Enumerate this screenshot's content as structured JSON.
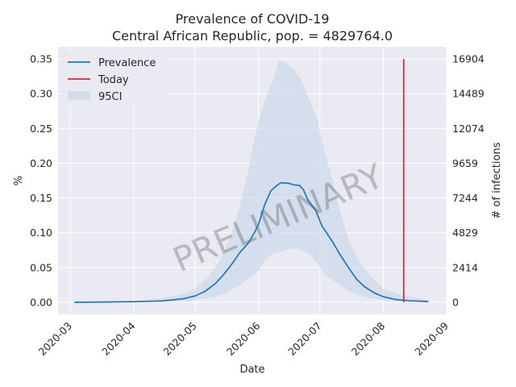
{
  "chart_data": {
    "type": "line",
    "title": "Prevalence of COVID-19",
    "subtitle": "Central African Republic, pop. = 4829764.0",
    "xlabel": "Date",
    "ylabel": "%",
    "y2label": "# of infections",
    "x_ticks": [
      "2020-03",
      "2020-04",
      "2020-05",
      "2020-06",
      "2020-07",
      "2020-08",
      "2020-09"
    ],
    "y_ticks": [
      "0.00",
      "0.05",
      "0.10",
      "0.15",
      "0.20",
      "0.25",
      "0.30",
      "0.35"
    ],
    "y2_ticks": [
      "0",
      "2414",
      "4829",
      "7244",
      "9659",
      "12074",
      "14489",
      "16904"
    ],
    "xlim": [
      "2020-02-24",
      "2020-09-01"
    ],
    "ylim": [
      -0.0175,
      0.3675
    ],
    "grid": true,
    "legend_position": "top-left",
    "watermark": "PRELIMINARY",
    "today": "2020-08-11",
    "today_range": [
      0.0,
      0.35
    ],
    "colors": {
      "prevalence": "#1f77b4",
      "today": "#d62728",
      "ci": "#c6d6ea",
      "background": "#eaeaf2"
    },
    "series": [
      {
        "name": "Prevalence",
        "role": "line",
        "points": [
          [
            "2020-03-03",
            0.0
          ],
          [
            "2020-03-15",
            0.0003
          ],
          [
            "2020-04-01",
            0.0008
          ],
          [
            "2020-04-15",
            0.002
          ],
          [
            "2020-04-25",
            0.005
          ],
          [
            "2020-05-01",
            0.009
          ],
          [
            "2020-05-06",
            0.016
          ],
          [
            "2020-05-11",
            0.027
          ],
          [
            "2020-05-15",
            0.04
          ],
          [
            "2020-05-19",
            0.055
          ],
          [
            "2020-05-23",
            0.072
          ],
          [
            "2020-05-27",
            0.085
          ],
          [
            "2020-05-30",
            0.1
          ],
          [
            "2020-06-01",
            0.112
          ],
          [
            "2020-06-04",
            0.14
          ],
          [
            "2020-06-07",
            0.16
          ],
          [
            "2020-06-10",
            0.168
          ],
          [
            "2020-06-12",
            0.172
          ],
          [
            "2020-06-16",
            0.171
          ],
          [
            "2020-06-18",
            0.169
          ],
          [
            "2020-06-21",
            0.168
          ],
          [
            "2020-06-23",
            0.162
          ],
          [
            "2020-06-25",
            0.148
          ],
          [
            "2020-06-29",
            0.132
          ],
          [
            "2020-07-02",
            0.11
          ],
          [
            "2020-07-07",
            0.088
          ],
          [
            "2020-07-11",
            0.068
          ],
          [
            "2020-07-15",
            0.05
          ],
          [
            "2020-07-19",
            0.033
          ],
          [
            "2020-07-23",
            0.022
          ],
          [
            "2020-07-28",
            0.013
          ],
          [
            "2020-08-01",
            0.008
          ],
          [
            "2020-08-07",
            0.004
          ],
          [
            "2020-08-15",
            0.002
          ],
          [
            "2020-08-23",
            0.001
          ]
        ]
      },
      {
        "name": "95CI",
        "role": "band",
        "points": [
          [
            "2020-03-03",
            0.0,
            0.0
          ],
          [
            "2020-04-01",
            0.0,
            0.002
          ],
          [
            "2020-04-15",
            0.0,
            0.006
          ],
          [
            "2020-04-25",
            0.001,
            0.012
          ],
          [
            "2020-05-01",
            0.003,
            0.02
          ],
          [
            "2020-05-07",
            0.006,
            0.035
          ],
          [
            "2020-05-11",
            0.008,
            0.05
          ],
          [
            "2020-05-15",
            0.012,
            0.07
          ],
          [
            "2020-05-19",
            0.018,
            0.1
          ],
          [
            "2020-05-23",
            0.025,
            0.14
          ],
          [
            "2020-05-27",
            0.035,
            0.19
          ],
          [
            "2020-05-30",
            0.04,
            0.235
          ],
          [
            "2020-06-01",
            0.045,
            0.26
          ],
          [
            "2020-06-04",
            0.06,
            0.29
          ],
          [
            "2020-06-08",
            0.07,
            0.32
          ],
          [
            "2020-06-11",
            0.072,
            0.348
          ],
          [
            "2020-06-14",
            0.075,
            0.345
          ],
          [
            "2020-06-18",
            0.078,
            0.335
          ],
          [
            "2020-06-22",
            0.075,
            0.32
          ],
          [
            "2020-06-26",
            0.07,
            0.29
          ],
          [
            "2020-06-30",
            0.055,
            0.26
          ],
          [
            "2020-07-03",
            0.042,
            0.22
          ],
          [
            "2020-07-07",
            0.032,
            0.18
          ],
          [
            "2020-07-11",
            0.024,
            0.13
          ],
          [
            "2020-07-15",
            0.016,
            0.09
          ],
          [
            "2020-07-20",
            0.01,
            0.06
          ],
          [
            "2020-07-25",
            0.006,
            0.04
          ],
          [
            "2020-08-01",
            0.003,
            0.02
          ],
          [
            "2020-08-10",
            0.001,
            0.01
          ],
          [
            "2020-08-23",
            0.0,
            0.004
          ]
        ]
      },
      {
        "name": "Today",
        "role": "vline"
      }
    ]
  }
}
